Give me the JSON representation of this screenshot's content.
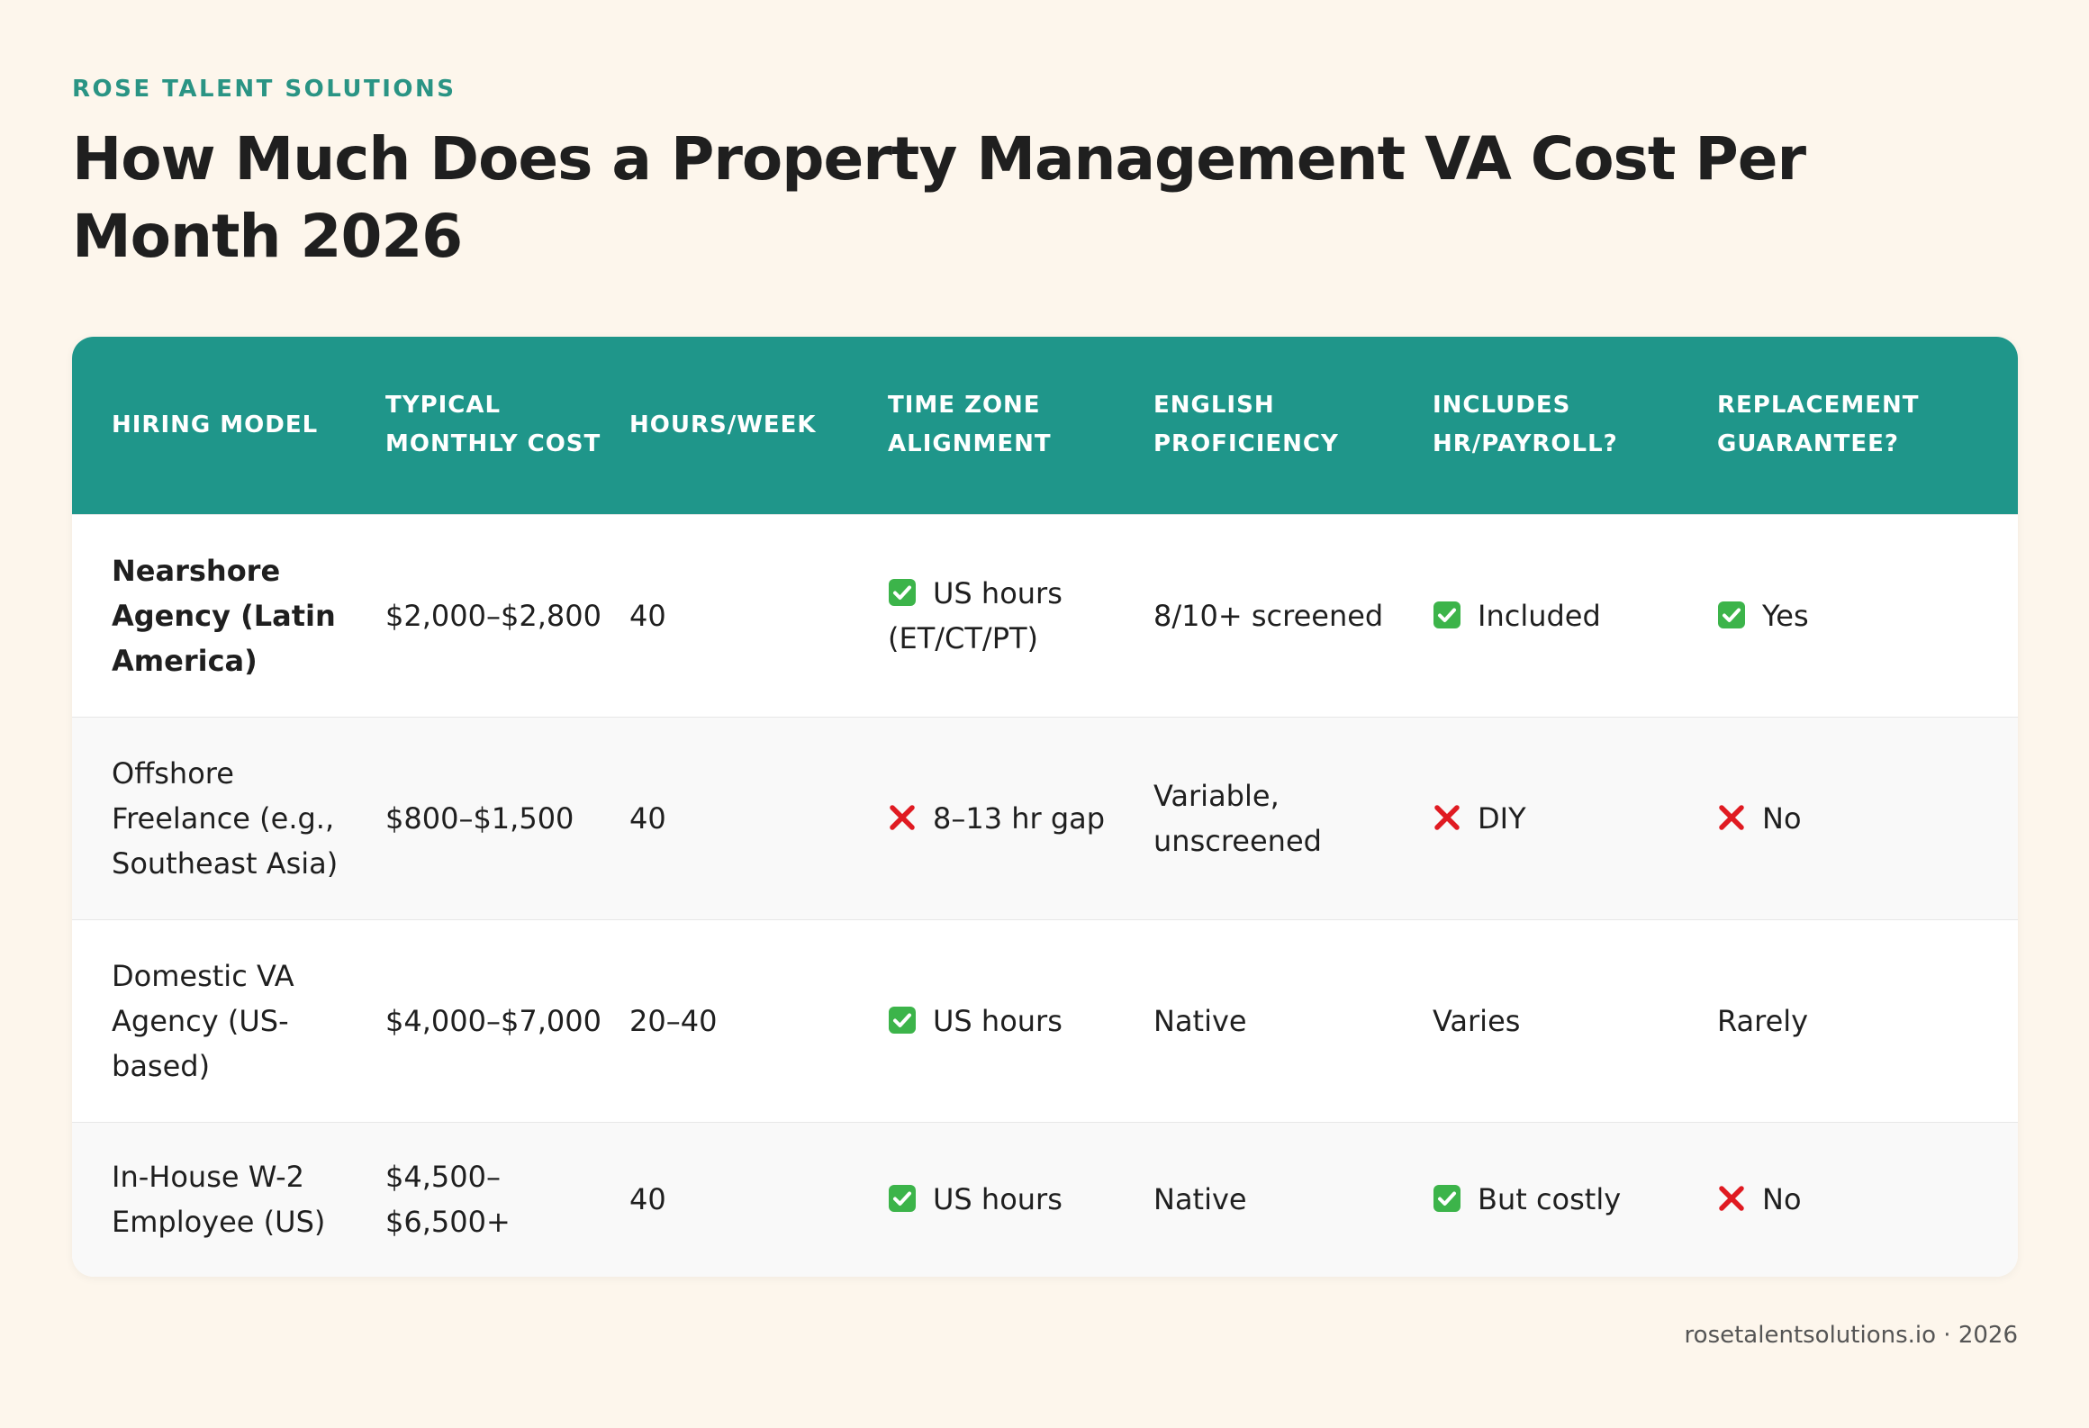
{
  "header": {
    "brand": "ROSE TALENT SOLUTIONS",
    "title": "How Much Does a Property Management VA Cost Per Month 2026"
  },
  "table": {
    "headers": [
      "HIRING MODEL",
      "TYPICAL MONTHLY COST",
      "HOURS/WEEK",
      "TIME ZONE ALIGNMENT",
      "ENGLISH PROFICIENCY",
      "INCLUDES HR/PAYROLL?",
      "REPLACEMENT GUARANTEE?"
    ],
    "highlight_row": 0,
    "rows": [
      [
        "Nearshore Agency (Latin America)",
        "$2,000–$2,800",
        "40",
        {
          "icon": "check",
          "text": "US hours (ET/CT/PT)"
        },
        "8/10+ screened",
        {
          "icon": "check",
          "text": "Included"
        },
        {
          "icon": "check",
          "text": "Yes"
        }
      ],
      [
        "Offshore Freelance (e.g., Southeast Asia)",
        "$800–$1,500",
        "40",
        {
          "icon": "cross",
          "text": "8–13 hr gap"
        },
        "Variable, unscreened",
        {
          "icon": "cross",
          "text": "DIY"
        },
        {
          "icon": "cross",
          "text": "No"
        }
      ],
      [
        "Domestic VA Agency (US-based)",
        "$4,000–$7,000",
        "20–40",
        {
          "icon": "check",
          "text": "US hours"
        },
        "Native",
        "Varies",
        "Rarely"
      ],
      [
        "In-House W-2 Employee (US)",
        "$4,500–$6,500+",
        "40",
        {
          "icon": "check",
          "text": "US hours"
        },
        "Native",
        {
          "icon": "check",
          "text": "But costly"
        },
        {
          "icon": "cross",
          "text": "No"
        }
      ]
    ]
  },
  "footer": {
    "source": "rosetalentsolutions.io · 2026"
  }
}
